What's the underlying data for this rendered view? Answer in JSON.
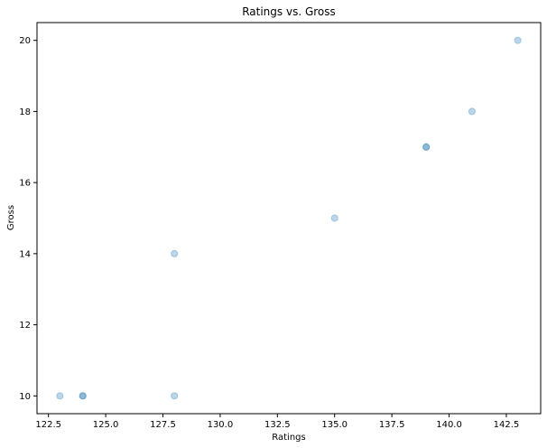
{
  "chart_data": {
    "type": "scatter",
    "title": "Ratings vs. Gross",
    "xlabel": "Ratings",
    "ylabel": "Gross",
    "xlim": [
      122.0,
      144.0
    ],
    "ylim": [
      9.5,
      20.5
    ],
    "xticks": [
      "122.5",
      "125.0",
      "127.5",
      "130.0",
      "132.5",
      "135.0",
      "137.5",
      "140.0",
      "142.5"
    ],
    "yticks": [
      "10",
      "12",
      "14",
      "16",
      "18",
      "20"
    ],
    "grid": false,
    "marker_color": "#1f77b4",
    "marker_alpha": 0.3,
    "points": [
      {
        "x": 123,
        "y": 10
      },
      {
        "x": 124,
        "y": 10
      },
      {
        "x": 124,
        "y": 10
      },
      {
        "x": 128,
        "y": 10
      },
      {
        "x": 128,
        "y": 14
      },
      {
        "x": 135,
        "y": 15
      },
      {
        "x": 139,
        "y": 17
      },
      {
        "x": 139,
        "y": 17
      },
      {
        "x": 141,
        "y": 18
      },
      {
        "x": 143,
        "y": 20
      }
    ]
  }
}
